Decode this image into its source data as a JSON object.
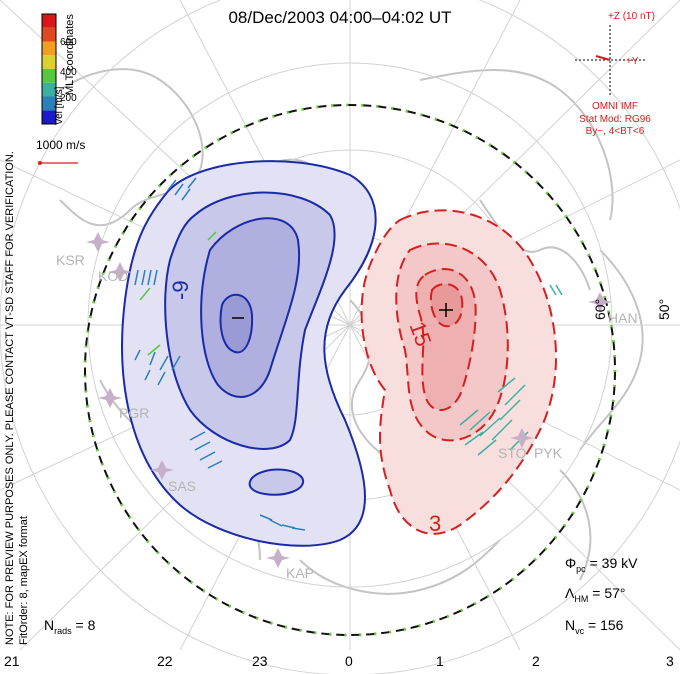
{
  "header": {
    "title": "08/Dec/2003 04:00–04:02 UT"
  },
  "velocity_scale": {
    "axis_label": "Vel [m/s]",
    "coords_label": "MLT coordinates",
    "ticks": [
      "200",
      "400",
      "600"
    ],
    "colors": [
      "#1a1acc",
      "#2a80b8",
      "#3bb0a0",
      "#55c83c",
      "#d8d230",
      "#f0a020",
      "#e04820",
      "#d81818"
    ],
    "ref_vector_label": "1000 m/s"
  },
  "imf": {
    "z_label": "+Z (10 nT)",
    "y_label": "+Y",
    "source": "OMNI IMF",
    "model": "Stat Mod: RG96",
    "condition": "By−, 4<BT<6"
  },
  "notes": {
    "preview": "NOTE: FOR PREVIEW PURPOSES ONLY. PLEASE CONTACT VT-SD STAFF FOR VERIFICATION.",
    "fit": "FitOrder: 8, mapEX format"
  },
  "stats": {
    "phi_pc": "39 kV",
    "lambda_hm": "57°",
    "n_vc": "156",
    "n_rads": "8"
  },
  "mlt_ticks": [
    "21",
    "22",
    "23",
    "0",
    "1",
    "2",
    "3"
  ],
  "latitude_labels": [
    "60°",
    "50°"
  ],
  "contour_labels": {
    "neg": "-9",
    "pos": "15",
    "pos_outer": "3"
  },
  "extrema": {
    "min": "–",
    "max": "+"
  },
  "stations": [
    "KSR",
    "KOD",
    "PGR",
    "SAS",
    "KAP",
    "HAN",
    "STO",
    "PYK"
  ],
  "colors": {
    "negative": "#1a2aa8",
    "positive": "#d42020",
    "neg_fill": "#c8c8ea",
    "pos_fill": "#f4c8c8",
    "coast": "#c4c4c4",
    "grid": "#d2d2d2"
  }
}
